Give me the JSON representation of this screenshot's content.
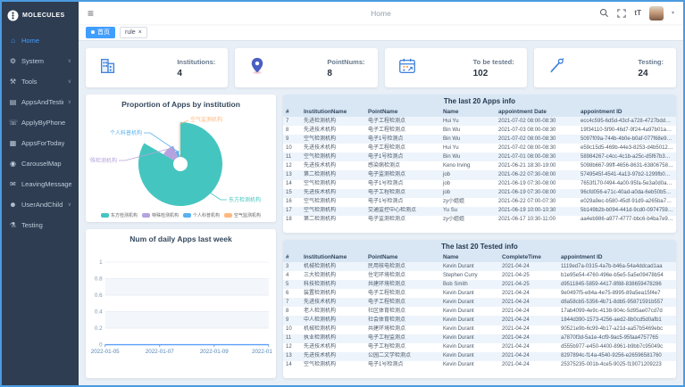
{
  "sidebar": {
    "logo_text": "MOLECULES",
    "items": [
      {
        "label": "Home",
        "icon": "home-icon",
        "glyph": "⌂",
        "active": true,
        "chevron": false
      },
      {
        "label": "System",
        "icon": "gear-icon",
        "glyph": "⚙",
        "active": false,
        "chevron": true
      },
      {
        "label": "Tools",
        "icon": "tools-icon",
        "glyph": "⚒",
        "active": false,
        "chevron": true
      },
      {
        "label": "AppsAndTesting",
        "icon": "list-icon",
        "glyph": "▤",
        "active": false,
        "chevron": true
      },
      {
        "label": "ApplyByPhone",
        "icon": "phone-icon",
        "glyph": "☏",
        "active": false,
        "chevron": false
      },
      {
        "label": "AppsForToday",
        "icon": "document-icon",
        "glyph": "▦",
        "active": false,
        "chevron": false
      },
      {
        "label": "CarouselMap",
        "icon": "map-icon",
        "glyph": "◉",
        "active": false,
        "chevron": false
      },
      {
        "label": "LeavingMessage",
        "icon": "message-icon",
        "glyph": "✉",
        "active": false,
        "chevron": false
      },
      {
        "label": "UserAndChild",
        "icon": "user-icon",
        "glyph": "☻",
        "active": false,
        "chevron": true
      },
      {
        "label": "Testing",
        "icon": "flask-icon",
        "glyph": "⚗",
        "active": false,
        "chevron": false
      }
    ]
  },
  "header": {
    "title": "Home",
    "font_icon_label": "tT"
  },
  "tabs": [
    {
      "label": "首页",
      "active": true,
      "closable": false
    },
    {
      "label": "rule",
      "active": false,
      "closable": true
    }
  ],
  "stats": [
    {
      "label": "Institutions:",
      "value": "4",
      "icon": "building-icon"
    },
    {
      "label": "PointNums:",
      "value": "8",
      "icon": "map-pin-icon"
    },
    {
      "label": "To be tested:",
      "value": "102",
      "icon": "calendar-icon"
    },
    {
      "label": "Testing:",
      "value": "24",
      "icon": "dropper-icon"
    }
  ],
  "chart_data": [
    {
      "type": "pie",
      "title": "Proportion of Apps by institution",
      "legend_position": "bottom",
      "rose": true,
      "donut": true,
      "series": [
        {
          "name": "东方检测机构",
          "value": 85,
          "color": "#45c5c0"
        },
        {
          "name": "特殊检测机构",
          "value": 11,
          "color": "#b6a2de"
        },
        {
          "name": "个人科普机构",
          "value": 4,
          "color": "#5ab1ef"
        },
        {
          "name": "空气监测机构",
          "value": 2,
          "color": "#ffb980"
        }
      ]
    },
    {
      "type": "line",
      "title": "Num of daily Apps last week",
      "x": [
        "2022-01-05",
        "2022-01-06",
        "2022-01-07",
        "2022-01-08",
        "2022-01-09",
        "2022-01-10",
        "2022-01-11"
      ],
      "values": [
        0,
        0,
        0,
        0,
        0,
        0,
        0
      ],
      "ylim": [
        0,
        1
      ],
      "yticks": [
        0,
        0.2,
        0.4,
        0.6,
        0.8,
        1
      ],
      "xtick_labels": [
        "2022-01-05",
        "2022-01-07",
        "2022-01-09",
        "2022-01-11"
      ],
      "grid": true,
      "axis_color": "#5a9cd8",
      "xlabel_color": "#5585b5",
      "ylabel_color": "#8097ad"
    }
  ],
  "tables": [
    {
      "title": "The last 20 Apps info",
      "columns": [
        "#",
        "InstitutionName",
        "PointName",
        "Name",
        "appointment Date",
        "appointment ID"
      ],
      "rows": [
        [
          "7",
          "先进检测机构",
          "电子工程检测点",
          "Hui Yu",
          "2021-07-02 08:00-08:30",
          "ecc4c595-6d5d-43cf-a728-4727bddb50f1"
        ],
        [
          "8",
          "先进技术机构",
          "电子工程检测点",
          "Bin Wu",
          "2021-07-03 08:00-08:30",
          "19f34110-5f90-46d7-9f24-4a97b01a7b71"
        ],
        [
          "9",
          "空气检测机构",
          "电子1号检测点",
          "Bin Wu",
          "2021-07-02 08:00-08:30",
          "5097f09a-744b-4b0e-b0af-077f68e95eb4"
        ],
        [
          "10",
          "先进技术机构",
          "电子工程检测点",
          "Hui Yu",
          "2021-07-02 08:00-08:30",
          "e59c15d5-469b-44e3-8253-d4b50126187a"
        ],
        [
          "11",
          "空气检测机构",
          "电子1号检测点",
          "Bin Wu",
          "2021-07-01 08:00-08:30",
          "58984267-c4cc-4c1b-a25c-d5f67b3986b7"
        ],
        [
          "12",
          "先进技术机构",
          "感染病检测点",
          "Keno Irving",
          "2021-06-21 18:30-19:00",
          "5098b667-99ff-4656-8631-63806758161e"
        ],
        [
          "13",
          "第二检测机构",
          "电子监测检测点",
          "job",
          "2021-06-22 07:30-08:00",
          "5749545f-4541-4a13-97b2-1299fb05c0cd"
        ],
        [
          "14",
          "空气检测机构",
          "电子1号检测点",
          "job",
          "2021-06-19 07:30-08:00",
          "7653f170-f494-4a00-95fa-5e3a0d0a05c9"
        ],
        [
          "15",
          "先进技术机构",
          "电子工程检测点",
          "job",
          "2021-06-19 07:30-08:00",
          "96cfd056-e71c-40ad-a0da-6eb50b59eb9e"
        ],
        [
          "16",
          "空气检测机构",
          "电子1号检测点",
          "zy小姐姐",
          "2021-06-22 07:00-07:30",
          "e029a9ec-b580-45df-91d9-a265ba7d942b"
        ],
        [
          "17",
          "空气检测机构",
          "交通监控中心检测点",
          "Yu Su",
          "2021-06-19 10:00-10:30",
          "5b149b2b-b094-441d-9cd0-0974759e33df"
        ],
        [
          "18",
          "第二检测机构",
          "电子监测检测点",
          "zy小姐姐",
          "2021-06-17 10:30-11:00",
          "aa4eb986-a977-4777-bbc6-b4ba7e990b9a"
        ]
      ]
    },
    {
      "title": "The last 20 Tested info",
      "columns": [
        "#",
        "InstitutionName",
        "PointName",
        "Name",
        "CompleteTime",
        "appointment ID"
      ],
      "rows": [
        [
          "3",
          "机械检测机构",
          "民用核电检测点",
          "Kevin Durant",
          "2021-04-24",
          "1119ed7a-0315-4a7b-b46a-54a4ddcad1aa"
        ],
        [
          "4",
          "三大检测机构",
          "住宅环境检测点",
          "Stephen Curry",
          "2021-04-25",
          "b1e95e54-4760-496e-b5e5-5a5e09478b54"
        ],
        [
          "5",
          "科技检测机构",
          "共建环境检测点",
          "Bob Smith",
          "2021-04-25",
          "d9511845-5859-4417-8f88-838659478286"
        ],
        [
          "6",
          "装置检测机构",
          "电子工程检测点",
          "Kevin Durant",
          "2021-04-24",
          "9e0497f5-e84a-4e75-8995-89a5ea15f4e7"
        ],
        [
          "7",
          "先进技术机构",
          "电子工程检测点",
          "Kevin Durant",
          "2021-04-24",
          "d8a58cb5-5356-4b71-8db5-95871591b557"
        ],
        [
          "8",
          "老人检测机构",
          "社区体育检测点",
          "Kevin Durant",
          "2021-04-24",
          "17ab4099-4e9c-4138-904c-5d95ae07cd7d"
        ],
        [
          "9",
          "中人检测机构",
          "社会体育检测点",
          "Kevin Durant",
          "2021-04-24",
          "1844d390-1573-4256-aed2-8b0cd5d0afb1"
        ],
        [
          "10",
          "机械检测机构",
          "共建环境检测点",
          "Kevin Durant",
          "2021-04-24",
          "90521e9b-6c99-4b17-a21d-aa57b5469ebc"
        ],
        [
          "11",
          "执业检测机构",
          "电子工程监测点",
          "Kevin Durant",
          "2021-04-24",
          "a7870f3d-5a1e-4cf9-9ac5-95faa4757765"
        ],
        [
          "12",
          "先进技术机构",
          "电子工程检测点",
          "Kevin Durant",
          "2021-04-24",
          "d555b977-e450-4400-8961-b9bb7c95049c"
        ],
        [
          "13",
          "先进技术机构",
          "公园二文学检测点",
          "Kevin Durant",
          "2021-04-24",
          "8297894c-f14a-4540-9256-e26596581760"
        ],
        [
          "14",
          "空气检测机构",
          "电子1号检测点",
          "Kevin Durant",
          "2021-04-24",
          "25375235-001b-4ce5-9025-f19071209223"
        ]
      ]
    }
  ]
}
